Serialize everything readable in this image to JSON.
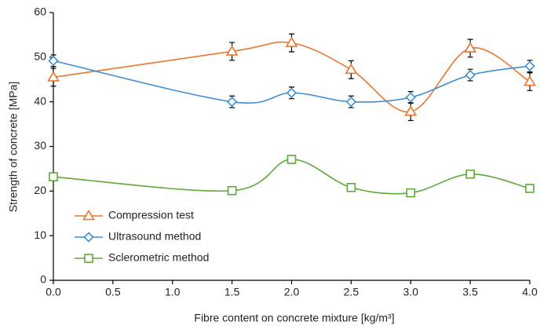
{
  "chart_data": {
    "type": "line",
    "x_label": "Fibre content on concrete mixture [kg/m³]",
    "y_label": "Strength of concrete [MPa]",
    "x": [
      0,
      1.5,
      2,
      2.5,
      3,
      3.5,
      4
    ],
    "series": [
      {
        "name": "Compression test",
        "color": "#E8772E",
        "marker": "triangle",
        "values": [
          45.5,
          51.3,
          53.2,
          47.2,
          37.8,
          52.0,
          44.5
        ],
        "errors": [
          2,
          2,
          2,
          2,
          2,
          2,
          2
        ]
      },
      {
        "name": "Ultrasound method",
        "color": "#3F8FD2",
        "marker": "diamond",
        "values": [
          49.2,
          40.0,
          42.0,
          40.0,
          41.0,
          46.0,
          48.0
        ],
        "errors": [
          1.3,
          1.3,
          1.3,
          1.3,
          1.3,
          1.3,
          1.3
        ]
      },
      {
        "name": "Sclerometric method",
        "color": "#5FA83A",
        "marker": "square",
        "values": [
          23.2,
          20.1,
          27.1,
          20.8,
          19.6,
          23.8,
          20.6
        ]
      }
    ],
    "xlim": [
      0,
      4
    ],
    "xticks": [
      {
        "value": 0,
        "label": "0.0"
      },
      {
        "value": 0.5,
        "label": "0.5"
      },
      {
        "value": 1,
        "label": "1.0"
      },
      {
        "value": 1.5,
        "label": "1.5"
      },
      {
        "value": 2,
        "label": "2.0"
      },
      {
        "value": 2.5,
        "label": "2.5"
      },
      {
        "value": 3,
        "label": "3.0"
      },
      {
        "value": 3.5,
        "label": "3.5"
      },
      {
        "value": 4,
        "label": "4.0"
      }
    ],
    "ylim": [
      0,
      60
    ],
    "yticks": [
      0,
      10,
      20,
      30,
      40,
      50,
      60
    ],
    "smooth": true,
    "legend": "lower left"
  }
}
